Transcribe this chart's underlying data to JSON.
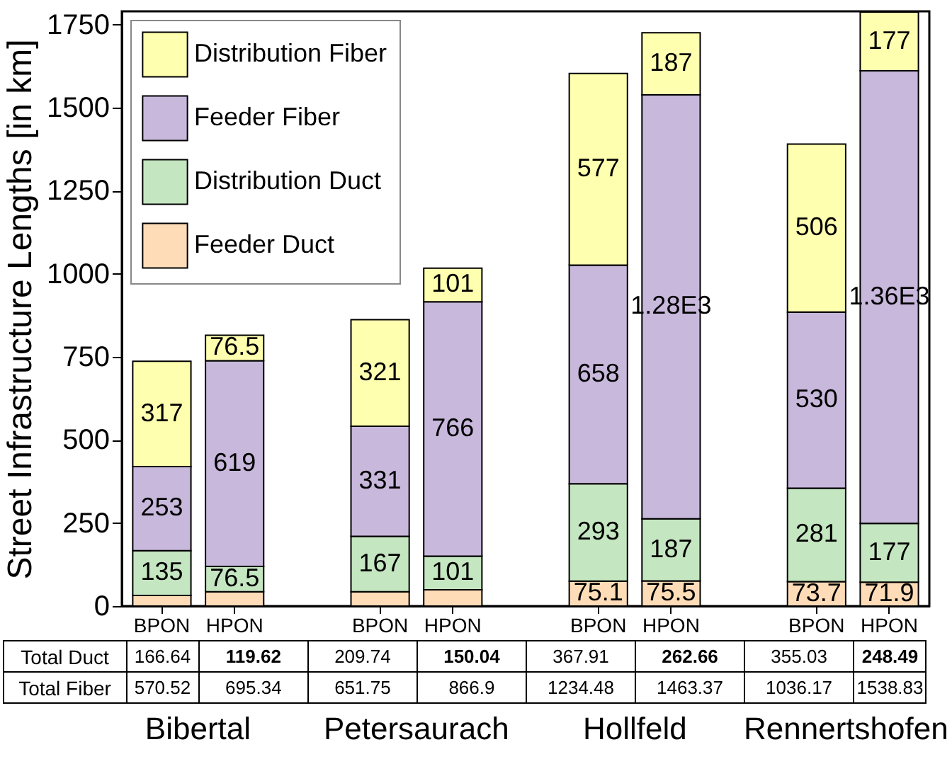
{
  "chart_data": {
    "type": "bar",
    "stacked": true,
    "ylabel": "Street Infrastructure Lengths [in km]",
    "categories": [
      "BPON",
      "HPON",
      "BPON",
      "HPON",
      "BPON",
      "HPON",
      "BPON",
      "HPON"
    ],
    "series": [
      {
        "name": "Feeder Duct",
        "color": "#ffdcb8",
        "values": [
          32,
          43,
          43,
          49,
          75.1,
          75.5,
          73.7,
          71.9
        ],
        "value_labels": [
          null,
          null,
          null,
          null,
          "75.1",
          "75.5",
          "73.7",
          "71.9"
        ]
      },
      {
        "name": "Distribution Duct",
        "color": "#c4e6c0",
        "values": [
          135,
          76.5,
          167,
          101,
          293,
          187,
          281,
          177
        ],
        "value_labels": [
          "135",
          "76.5",
          "167",
          "101",
          "293",
          "187",
          "281",
          "177"
        ]
      },
      {
        "name": "Feeder Fiber",
        "color": "#c8b8dc",
        "values": [
          253,
          619,
          331,
          766,
          658,
          1276,
          530,
          1362
        ],
        "value_labels": [
          "253",
          "619",
          "331",
          "766",
          "658",
          "1.28E3",
          "530",
          "1.36E3"
        ]
      },
      {
        "name": "Distribution Fiber",
        "color": "#ffffb0",
        "values": [
          317,
          76.5,
          321,
          101,
          577,
          187,
          506,
          177
        ],
        "value_labels": [
          "317",
          "76.5",
          "321",
          "101",
          "577",
          "187",
          "506",
          "177"
        ]
      }
    ],
    "ylim": [
      0,
      1790
    ],
    "yticks": [
      0,
      250,
      500,
      750,
      1000,
      1250,
      1500,
      1750
    ],
    "legend": "top left",
    "annotations": [
      "Total Duct",
      "166.64",
      "119.62",
      "209.74",
      "150.04",
      "367.91",
      "262.66",
      "355.03",
      "248.49",
      "Total Fiber",
      "570.52",
      "695.34",
      "651.75",
      "866.9",
      "1234.48",
      "1463.37",
      "1036.17",
      "1538.83",
      "Bibertal",
      "Petersaurach",
      "Hollfeld",
      "Rennertshofen"
    ]
  }
}
